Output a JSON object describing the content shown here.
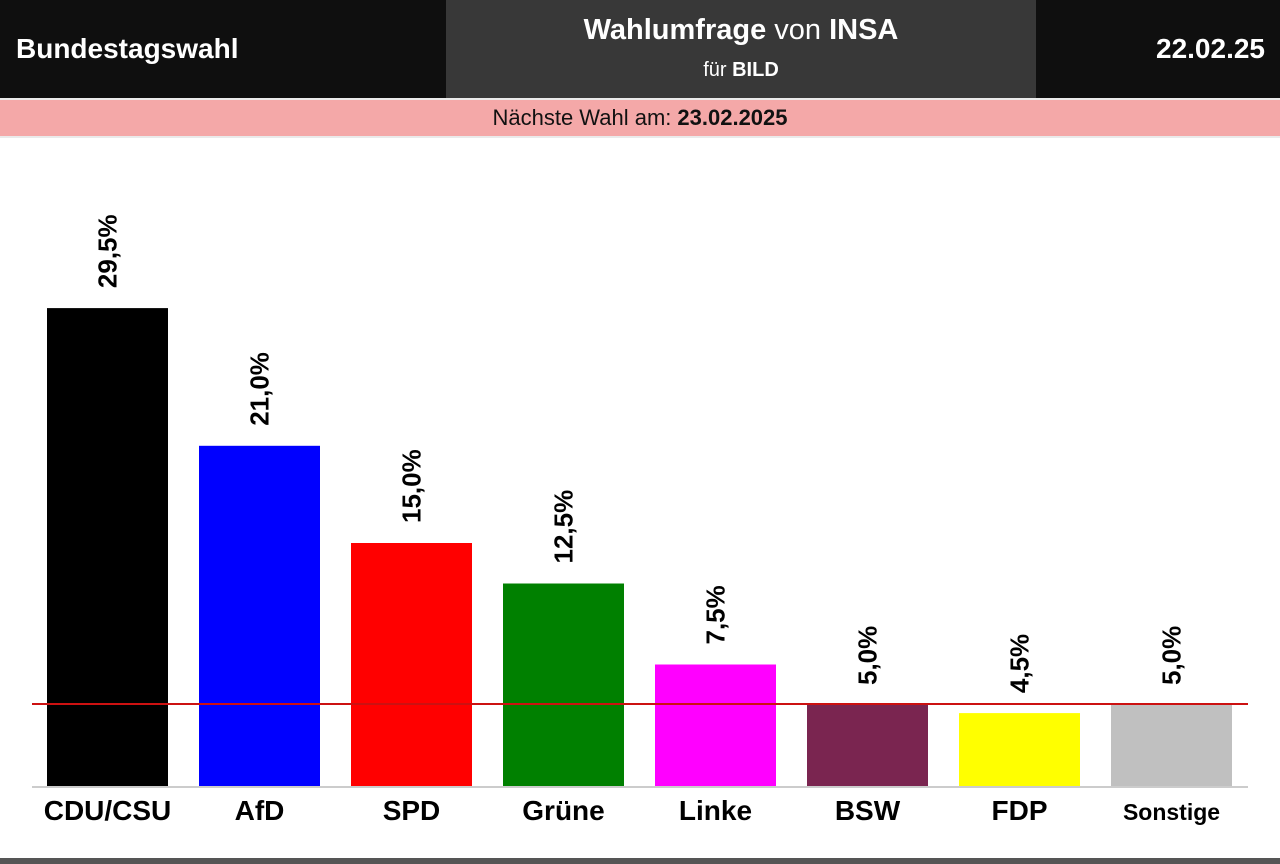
{
  "header": {
    "left_title": "Bundestagswahl",
    "center_title_bold": "Wahlumfrage",
    "center_title_connector": "von",
    "center_title_institute": "INSA",
    "center_sub_prefix": "für",
    "center_sub_client": "BILD",
    "date": "22.02.25"
  },
  "next_election": {
    "label": "Nächste Wahl am:",
    "date": "23.02.2025"
  },
  "colors": {
    "header_dark": "#0f0f0f",
    "header_center": "#383838",
    "next_bar": "#f4a8a8",
    "threshold_line": "#cc1111"
  },
  "chart_data": {
    "type": "bar",
    "categories": [
      "CDU/CSU",
      "AfD",
      "SPD",
      "Grüne",
      "Linke",
      "BSW",
      "FDP",
      "Sonstige"
    ],
    "values": [
      29.5,
      21.0,
      15.0,
      12.5,
      7.5,
      5.0,
      4.5,
      5.0
    ],
    "value_labels": [
      "29,5%",
      "21,0%",
      "15,0%",
      "12,5%",
      "7,5%",
      "5,0%",
      "4,5%",
      "5,0%"
    ],
    "bar_colors": [
      "#000000",
      "#0000ff",
      "#ff0000",
      "#008000",
      "#ff00ff",
      "#7a2550",
      "#ffff00",
      "#c0c0c0"
    ],
    "threshold": 5.0,
    "ylim": [
      0,
      30
    ],
    "grid": false,
    "legend": "none"
  }
}
